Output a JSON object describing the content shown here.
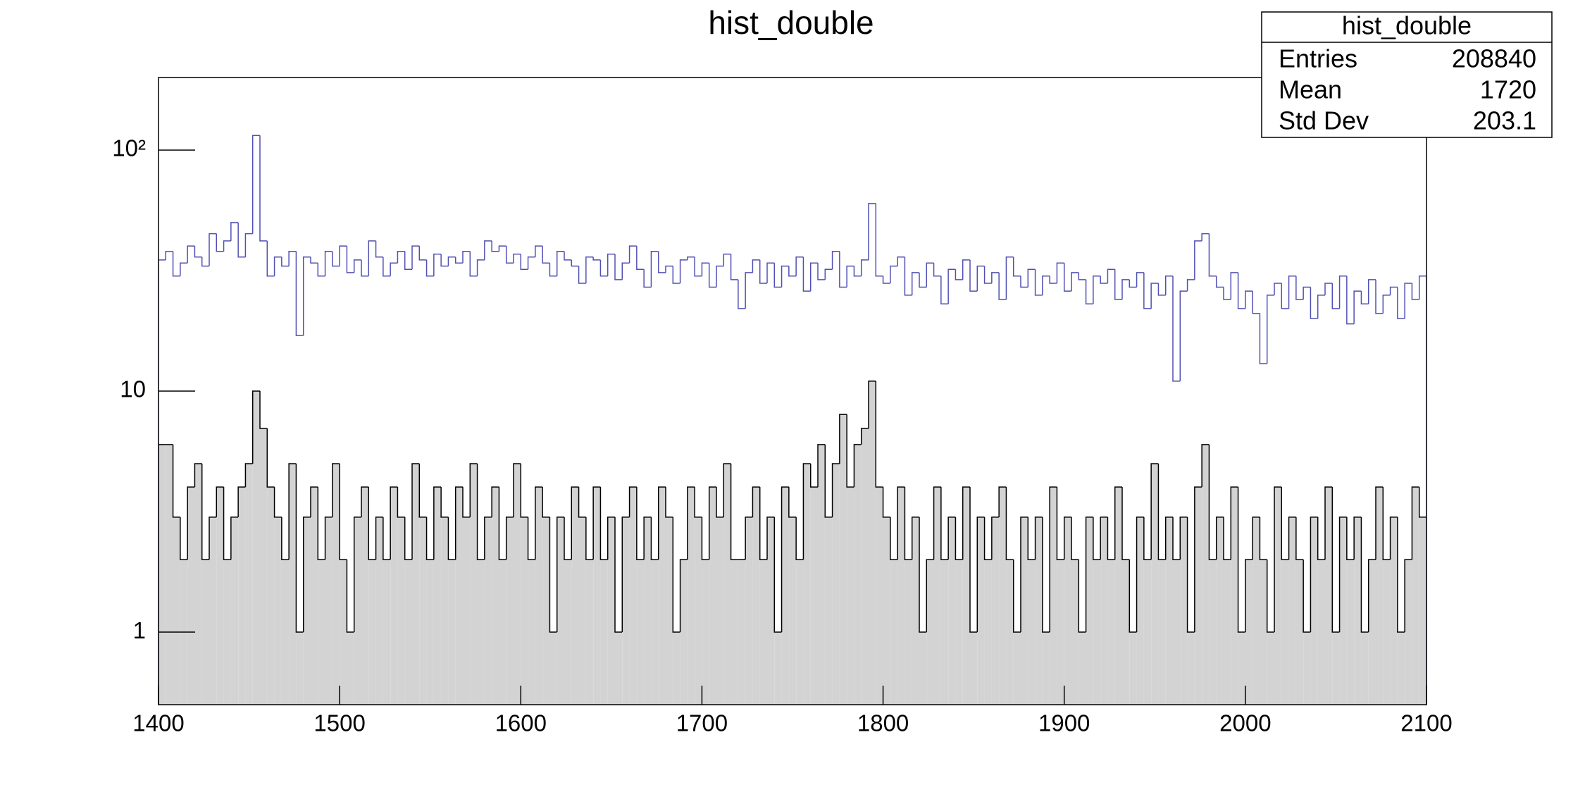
{
  "chart_data": {
    "type": "histogram",
    "title": "hist_double",
    "bins": [
      1400,
      1404,
      1408,
      1412,
      1416,
      1420,
      1424,
      1428,
      1432,
      1436,
      1440,
      1444,
      1448,
      1452,
      1456,
      1460,
      1464,
      1468,
      1472,
      1476,
      1480,
      1484,
      1488,
      1492,
      1496,
      1500,
      1504,
      1508,
      1512,
      1516,
      1520,
      1524,
      1528,
      1532,
      1536,
      1540,
      1544,
      1548,
      1552,
      1556,
      1560,
      1564,
      1568,
      1572,
      1576,
      1580,
      1584,
      1588,
      1592,
      1596,
      1600,
      1604,
      1608,
      1612,
      1616,
      1620,
      1624,
      1628,
      1632,
      1636,
      1640,
      1644,
      1648,
      1652,
      1656,
      1660,
      1664,
      1668,
      1672,
      1676,
      1680,
      1684,
      1688,
      1692,
      1696,
      1700,
      1704,
      1708,
      1712,
      1716,
      1720,
      1724,
      1728,
      1732,
      1736,
      1740,
      1744,
      1748,
      1752,
      1756,
      1760,
      1764,
      1768,
      1772,
      1776,
      1780,
      1784,
      1788,
      1792,
      1796,
      1800,
      1804,
      1808,
      1812,
      1816,
      1820,
      1824,
      1828,
      1832,
      1836,
      1840,
      1844,
      1848,
      1852,
      1856,
      1860,
      1864,
      1868,
      1872,
      1876,
      1880,
      1884,
      1888,
      1892,
      1896,
      1900,
      1904,
      1908,
      1912,
      1916,
      1920,
      1924,
      1928,
      1932,
      1936,
      1940,
      1944,
      1948,
      1952,
      1956,
      1960,
      1964,
      1968,
      1972,
      1976,
      1980,
      1984,
      1988,
      1992,
      1996,
      2000,
      2004,
      2008,
      2012,
      2016,
      2020,
      2024,
      2028,
      2032,
      2036,
      2040,
      2044,
      2048,
      2052,
      2056,
      2060,
      2064,
      2068,
      2072,
      2076,
      2080,
      2084,
      2088,
      2092,
      2096,
      2100
    ],
    "series": [
      {
        "color": "#5050b4",
        "values": [
          35,
          38,
          30,
          34,
          40,
          36,
          33,
          45,
          38,
          42,
          50,
          36,
          45,
          115,
          42,
          30,
          36,
          33,
          38,
          17,
          36,
          34,
          30,
          38,
          33,
          40,
          31,
          35,
          30,
          42,
          36,
          30,
          34,
          38,
          32,
          40,
          35,
          30,
          37,
          33,
          36,
          34,
          38,
          30,
          35,
          42,
          38,
          40,
          34,
          37,
          32,
          36,
          40,
          34,
          30,
          38,
          35,
          33,
          28,
          36,
          35,
          30,
          37,
          29,
          34,
          40,
          32,
          27,
          38,
          31,
          33,
          28,
          35,
          36,
          30,
          34,
          27,
          33,
          37,
          29,
          22,
          31,
          35,
          28,
          34,
          27,
          33,
          30,
          36,
          26,
          34,
          29,
          32,
          38,
          27,
          33,
          30,
          35,
          60,
          30,
          28,
          33,
          36,
          25,
          31,
          27,
          34,
          30,
          23,
          32,
          29,
          35,
          26,
          33,
          28,
          31,
          24,
          36,
          30,
          27,
          32,
          25,
          30,
          28,
          34,
          26,
          31,
          29,
          23,
          30,
          28,
          32,
          24,
          29,
          27,
          31,
          22,
          28,
          25,
          30,
          11,
          26,
          29,
          42,
          45,
          30,
          27,
          24,
          31,
          22,
          26,
          21,
          13,
          25,
          28,
          22,
          30,
          24,
          27,
          20,
          25,
          28,
          22,
          30,
          19,
          26,
          23,
          29,
          21,
          25,
          27,
          20,
          28,
          24,
          30
        ]
      },
      {
        "color": "#000000",
        "fill": "#d3d3d3",
        "values": [
          6,
          6,
          3,
          2,
          4,
          5,
          2,
          3,
          4,
          2,
          3,
          4,
          5,
          10,
          7,
          4,
          3,
          2,
          5,
          1,
          3,
          4,
          2,
          3,
          5,
          2,
          1,
          3,
          4,
          2,
          3,
          2,
          4,
          3,
          2,
          5,
          3,
          2,
          4,
          3,
          2,
          4,
          3,
          5,
          2,
          3,
          4,
          2,
          3,
          5,
          3,
          2,
          4,
          3,
          1,
          3,
          2,
          4,
          3,
          2,
          4,
          2,
          3,
          1,
          3,
          4,
          2,
          3,
          2,
          4,
          3,
          1,
          2,
          4,
          3,
          2,
          4,
          3,
          5,
          2,
          2,
          3,
          4,
          2,
          3,
          1,
          4,
          3,
          2,
          5,
          4,
          6,
          3,
          5,
          8,
          4,
          6,
          7,
          11,
          4,
          3,
          2,
          4,
          2,
          3,
          1,
          2,
          4,
          2,
          3,
          2,
          4,
          1,
          3,
          2,
          3,
          4,
          2,
          1,
          3,
          2,
          3,
          1,
          4,
          2,
          3,
          2,
          1,
          3,
          2,
          3,
          2,
          4,
          2,
          1,
          3,
          2,
          5,
          2,
          3,
          2,
          3,
          1,
          4,
          6,
          2,
          3,
          2,
          4,
          1,
          2,
          3,
          2,
          1,
          4,
          2,
          3,
          2,
          1,
          3,
          2,
          4,
          1,
          3,
          2,
          3,
          1,
          2,
          4,
          2,
          3,
          1,
          2,
          4,
          3
        ]
      }
    ],
    "xlim": [
      1400,
      2100
    ],
    "ylim": [
      0.5,
      200
    ],
    "log_y": true,
    "xticks": [
      1400,
      1500,
      1600,
      1700,
      1800,
      1900,
      2000,
      2100
    ],
    "yticks": [
      1,
      10,
      {
        "value": 100,
        "label": "10²"
      }
    ],
    "stats": {
      "title": "hist_double",
      "rows": [
        {
          "label": "Entries",
          "value": 208840
        },
        {
          "label": "Mean",
          "value": 1720
        },
        {
          "label": "Std Dev",
          "value": 203.1
        }
      ]
    }
  }
}
